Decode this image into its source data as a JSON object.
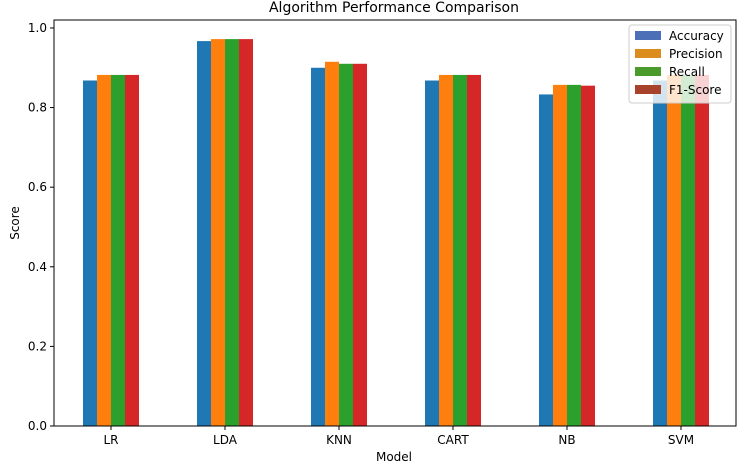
{
  "chart_data": {
    "type": "bar",
    "title": "Algorithm Performance Comparison",
    "xlabel": "Model",
    "ylabel": "Score",
    "ylim": [
      0,
      1.02
    ],
    "yticks": [
      "0.0",
      "0.2",
      "0.4",
      "0.6",
      "0.8",
      "1.0"
    ],
    "ytick_values": [
      0,
      0.2,
      0.4,
      0.6,
      0.8,
      1.0
    ],
    "grid": false,
    "legend_position": "top-right",
    "categories": [
      "LR",
      "LDA",
      "KNN",
      "CART",
      "NB",
      "SVM"
    ],
    "series": [
      {
        "name": "Accuracy",
        "color": "#1f77b4",
        "legend_color": "#4c6fb8",
        "values": [
          0.868,
          0.967,
          0.9,
          0.868,
          0.833,
          0.868
        ]
      },
      {
        "name": "Precision",
        "color": "#ff7f0e",
        "legend_color": "#dc8c1c",
        "values": [
          0.882,
          0.972,
          0.915,
          0.882,
          0.857,
          0.882
        ]
      },
      {
        "name": "Recall",
        "color": "#2ca02c",
        "legend_color": "#4a9a2c",
        "values": [
          0.882,
          0.972,
          0.91,
          0.882,
          0.857,
          0.882
        ]
      },
      {
        "name": "F1-Score",
        "color": "#d62728",
        "legend_color": "#a8422a",
        "values": [
          0.882,
          0.972,
          0.91,
          0.882,
          0.855,
          0.882
        ]
      }
    ]
  }
}
